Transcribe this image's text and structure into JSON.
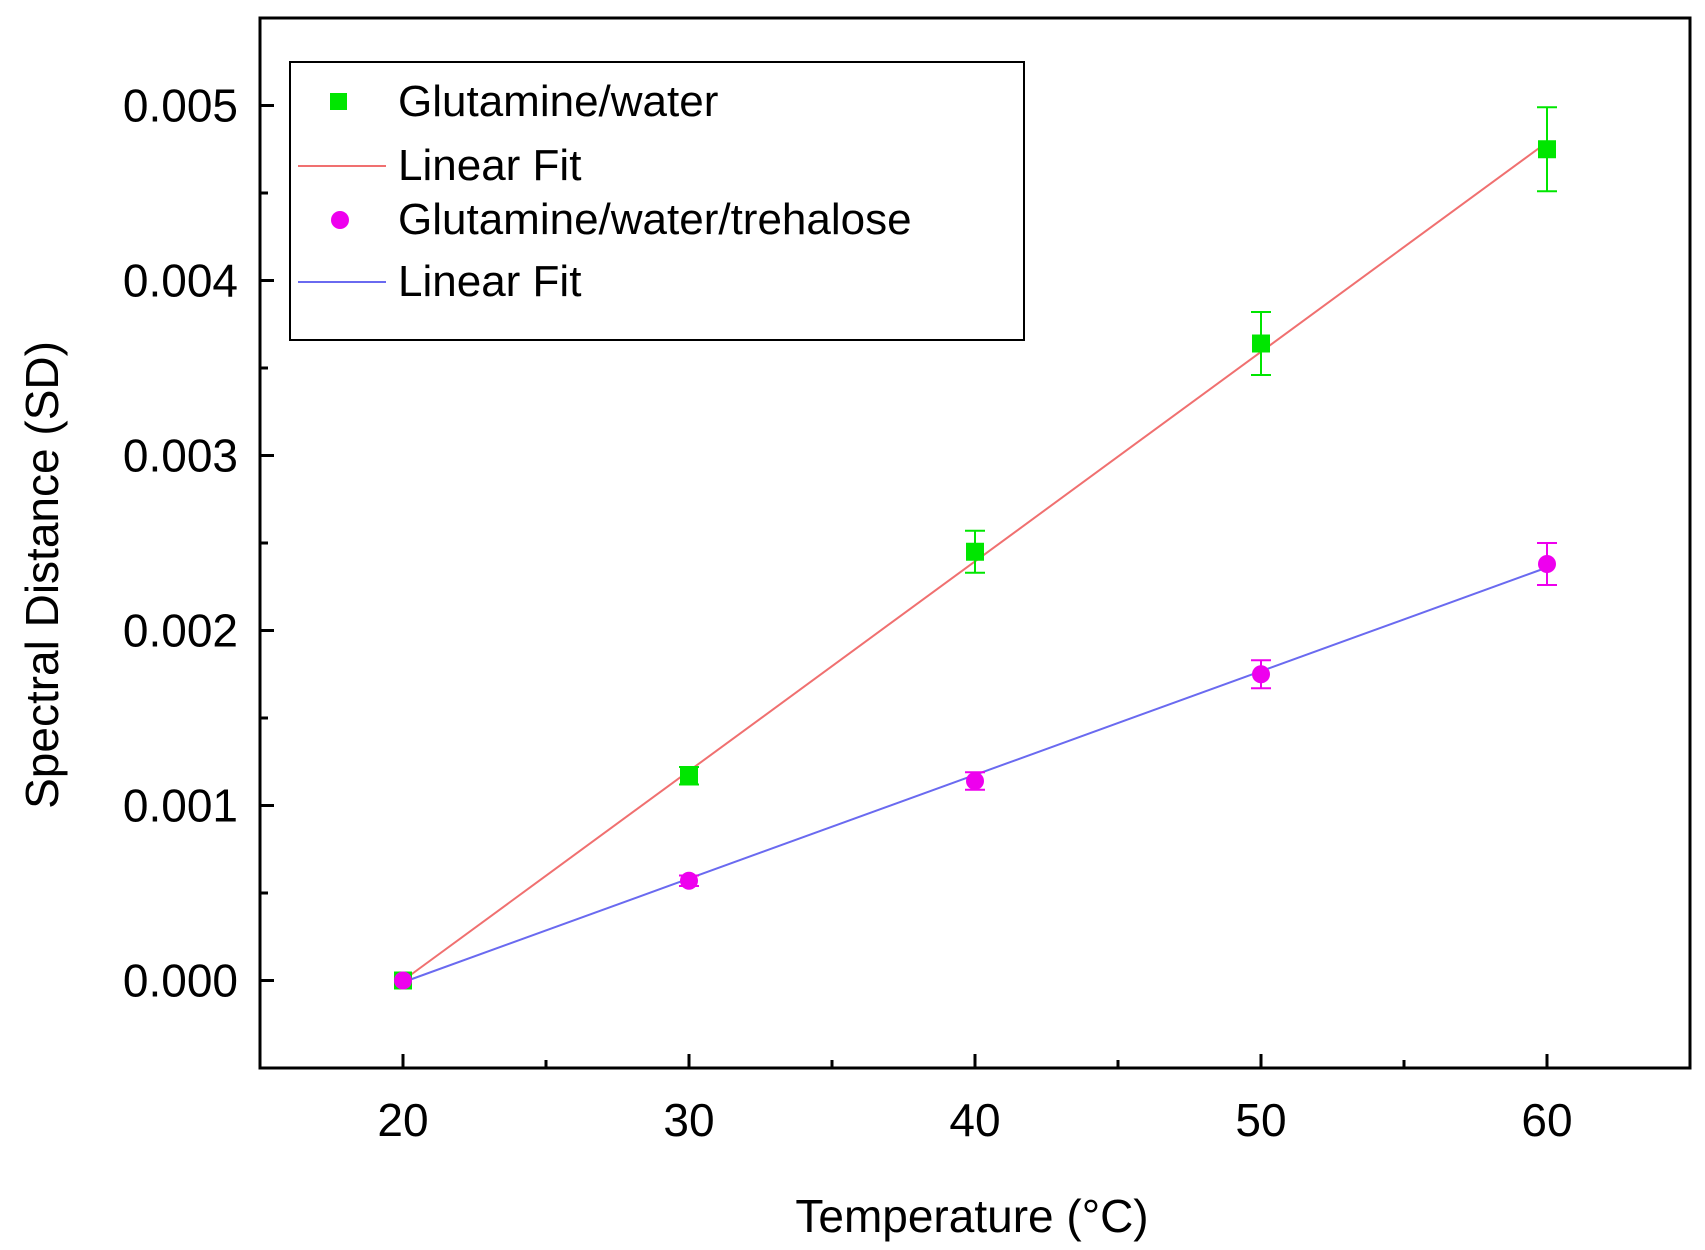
{
  "chart_data": {
    "type": "scatter",
    "xlabel": "Temperature (°C)",
    "ylabel": "Spectral Distance (SD)",
    "xlim": [
      15,
      65
    ],
    "ylim": [
      -0.0005,
      0.0055
    ],
    "x_ticks": [
      20,
      30,
      40,
      50,
      60
    ],
    "x_minor_ticks": [
      25,
      35,
      45,
      55
    ],
    "y_ticks": [
      0.0,
      0.001,
      0.002,
      0.003,
      0.004,
      0.005
    ],
    "x_tick_labels": [
      "20",
      "30",
      "40",
      "50",
      "60"
    ],
    "y_tick_labels": [
      "0.000",
      "0.001",
      "0.002",
      "0.003",
      "0.004",
      "0.005"
    ],
    "legend_position": "top-left",
    "series": [
      {
        "name": "Glutamine/water",
        "marker": "square",
        "color": "#00e600",
        "x": [
          20,
          30,
          40,
          50,
          60
        ],
        "y": [
          0.0,
          0.00117,
          0.00245,
          0.00364,
          0.00475
        ],
        "yerr": [
          0.0,
          5e-05,
          0.00012,
          0.00018,
          0.00024
        ]
      },
      {
        "name": "Linear Fit",
        "type": "line",
        "color": "#f07070",
        "x": [
          20,
          60
        ],
        "y": [
          0.0,
          0.00479
        ]
      },
      {
        "name": "Glutamine/water/trehalose",
        "marker": "circle",
        "color": "#ee00ee",
        "x": [
          20,
          30,
          40,
          50,
          60
        ],
        "y": [
          0.0,
          0.00057,
          0.00114,
          0.00175,
          0.00238
        ],
        "yerr": [
          0.0,
          3e-05,
          5e-05,
          8e-05,
          0.00012
        ]
      },
      {
        "name": "Linear Fit",
        "type": "line",
        "color": "#6a6af0",
        "x": [
          20,
          60
        ],
        "y": [
          -1e-05,
          0.00236
        ]
      }
    ]
  }
}
